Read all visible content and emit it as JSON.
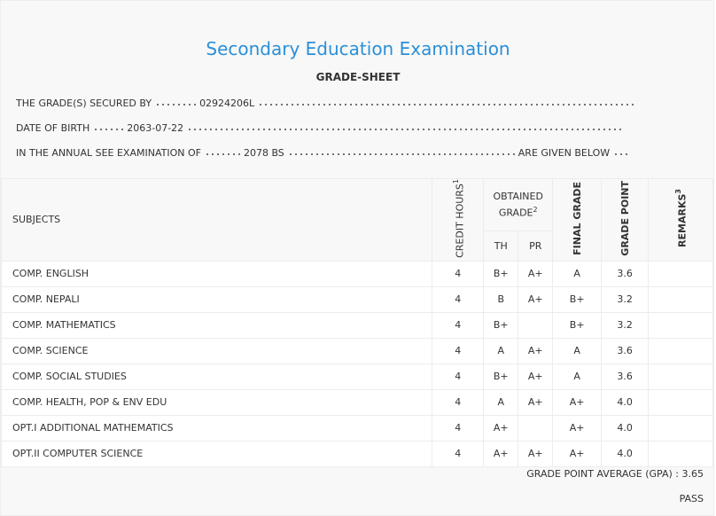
{
  "header": {
    "title": "Secondary Education Examination",
    "subtitle": "GRADE-SHEET"
  },
  "info": [
    {
      "label": "THE GRADE(S) SECURED BY",
      "value": "02924206L"
    },
    {
      "label": "DATE OF BIRTH",
      "value": "2063-07-22"
    },
    {
      "label": "IN THE ANNUAL SEE EXAMINATION OF",
      "value": "2078 BS",
      "suffix": "ARE GIVEN BELOW"
    }
  ],
  "table": {
    "columns": {
      "subjects": "SUBJECTS",
      "credit_hours": {
        "label": "CREDIT HOURS",
        "note": 1
      },
      "obtained_grade": {
        "label": "OBTAINED GRADE",
        "note": 2
      },
      "th": "TH",
      "pr": "PR",
      "final_grade": "FINAL GRADE",
      "grade_point": "GRADE POINT",
      "remarks": {
        "label": "REMARKS",
        "note": 3
      }
    },
    "rows": [
      {
        "subject": "COMP. ENGLISH",
        "credit_hours": 4,
        "th": "B+",
        "pr": "A+",
        "final_grade": "A",
        "grade_point": "3.6"
      },
      {
        "subject": "COMP. NEPALI",
        "credit_hours": 4,
        "th": "B",
        "pr": "A+",
        "final_grade": "B+",
        "grade_point": "3.2"
      },
      {
        "subject": "COMP. MATHEMATICS",
        "credit_hours": 4,
        "th": "B+",
        "final_grade": "B+",
        "grade_point": "3.2"
      },
      {
        "subject": "COMP. SCIENCE",
        "credit_hours": 4,
        "th": "A",
        "pr": "A+",
        "final_grade": "A",
        "grade_point": "3.6"
      },
      {
        "subject": "COMP. SOCIAL STUDIES",
        "credit_hours": 4,
        "th": "B+",
        "pr": "A+",
        "final_grade": "A",
        "grade_point": "3.6"
      },
      {
        "subject": "COMP. HEALTH, POP & ENV EDU",
        "credit_hours": 4,
        "th": "A",
        "pr": "A+",
        "final_grade": "A+",
        "grade_point": "4.0"
      },
      {
        "subject": "OPT.I ADDITIONAL MATHEMATICS",
        "credit_hours": 4,
        "th": "A+",
        "final_grade": "A+",
        "grade_point": "4.0"
      },
      {
        "subject": "OPT.II COMPUTER SCIENCE",
        "credit_hours": 4,
        "th": "A+",
        "pr": "A+",
        "final_grade": "A+",
        "grade_point": "4.0"
      }
    ]
  },
  "footer": {
    "gpa_label": "GRADE POINT AVERAGE (GPA)",
    "gpa": "3.65",
    "result": "PASS"
  }
}
